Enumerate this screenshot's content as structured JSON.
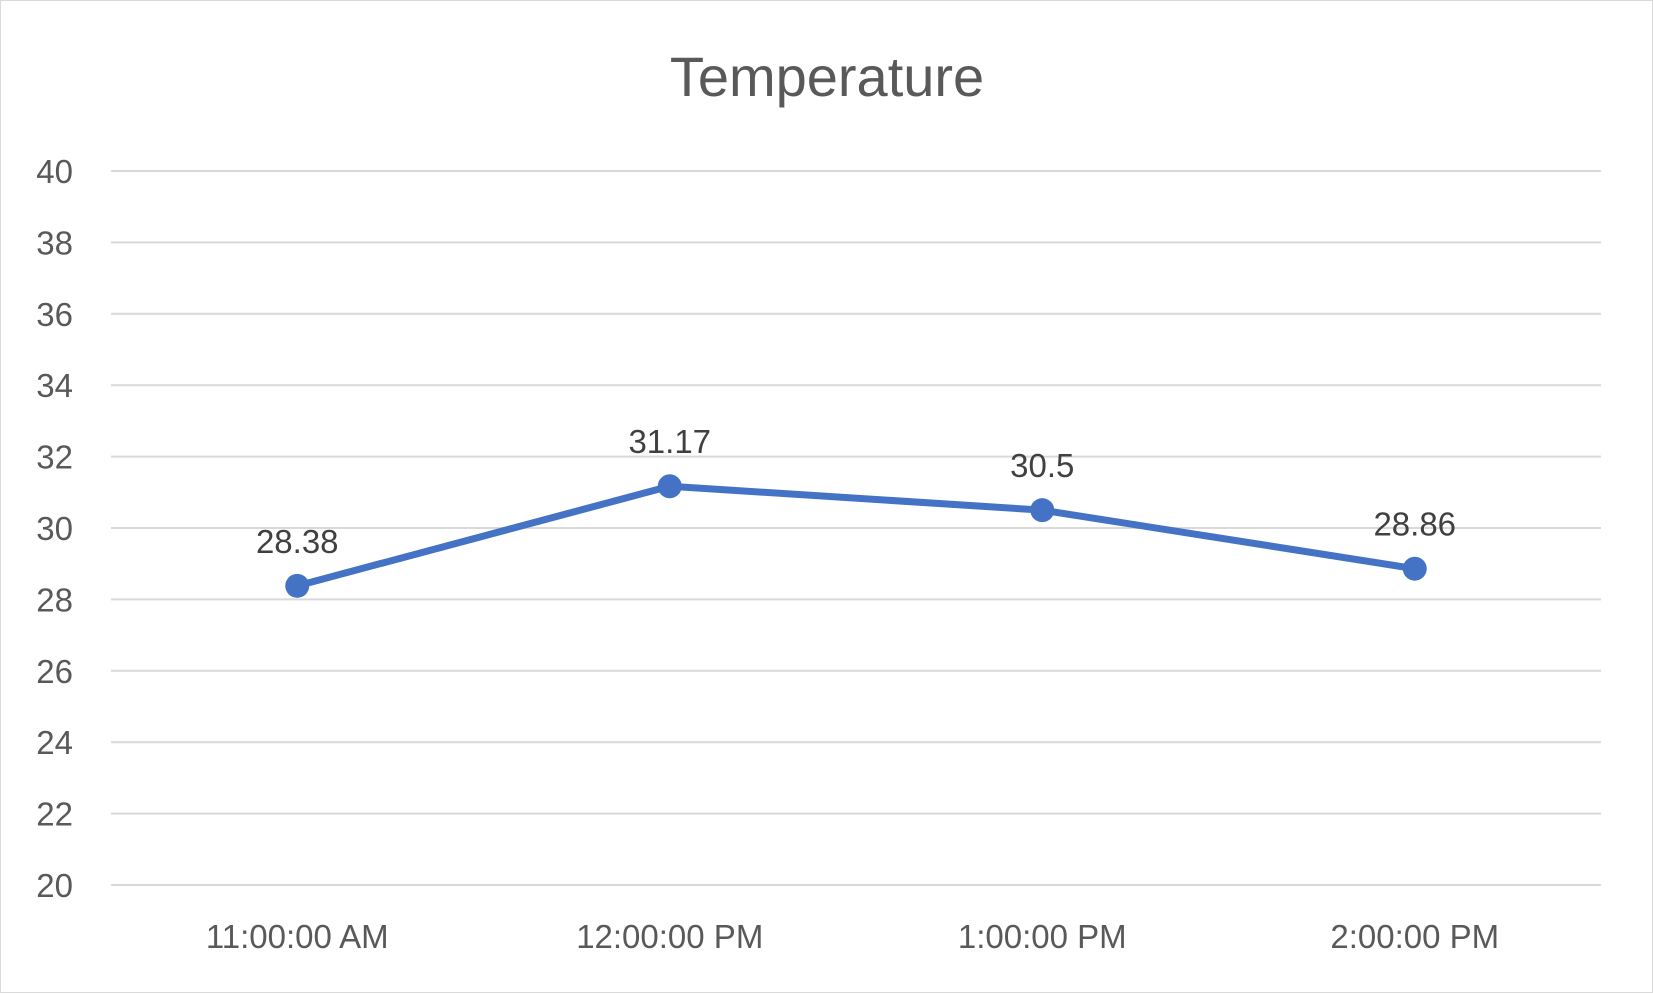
{
  "chart_data": {
    "type": "line",
    "title": "Temperature",
    "xlabel": "",
    "ylabel": "",
    "categories": [
      "11:00:00 AM",
      "12:00:00 PM",
      "1:00:00 PM",
      "2:00:00 PM"
    ],
    "series": [
      {
        "values": [
          28.38,
          31.17,
          30.5,
          28.86
        ],
        "color": "#4472C4"
      }
    ],
    "data_labels": [
      "28.38",
      "31.17",
      "30.5",
      "28.86"
    ],
    "ylim": [
      20,
      40
    ],
    "yticks": [
      "20",
      "22",
      "24",
      "26",
      "28",
      "30",
      "32",
      "34",
      "36",
      "38",
      "40"
    ],
    "grid": true,
    "legend": "none",
    "gridline_color": "#D9D9D9",
    "text_color": "#595959"
  }
}
